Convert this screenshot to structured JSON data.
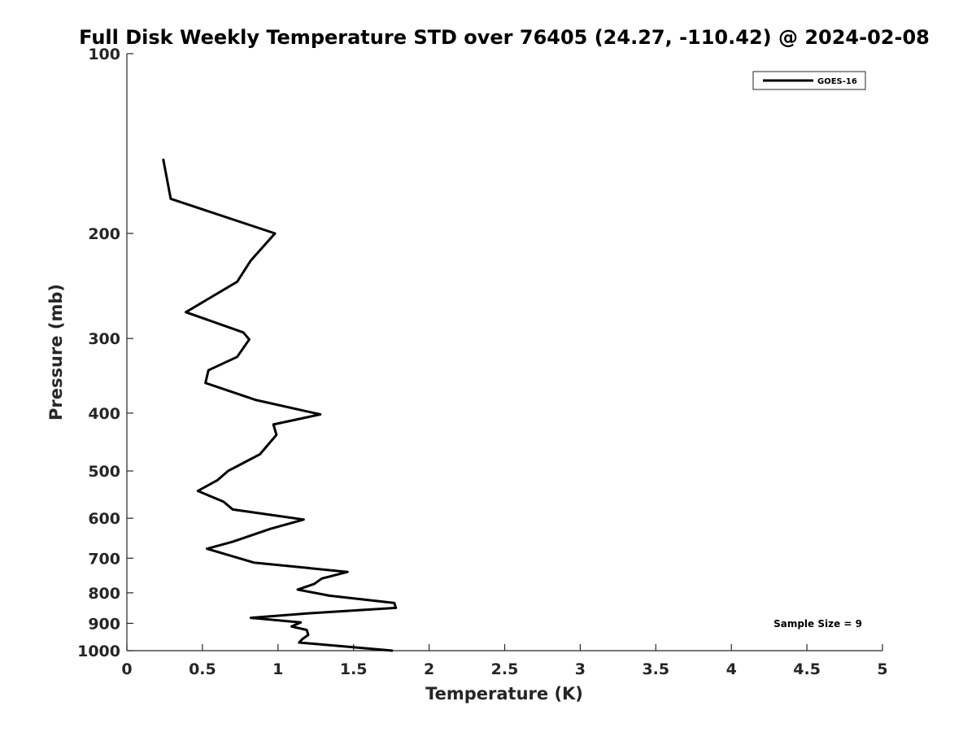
{
  "chart_data": {
    "type": "line",
    "title": "Full Disk Weekly Temperature STD over 76405 (24.27, -110.42) @ 2024-02-08",
    "xlabel": "Temperature (K)",
    "ylabel": "Pressure (mb)",
    "xlim": [
      0,
      5
    ],
    "ylim": [
      100,
      1000
    ],
    "y_scale": "log",
    "y_reversed": true,
    "xticks": [
      0,
      0.5,
      1,
      1.5,
      2,
      2.5,
      3,
      3.5,
      4,
      4.5,
      5
    ],
    "xtick_labels": [
      "0",
      "0.5",
      "1",
      "1.5",
      "2",
      "2.5",
      "3",
      "3.5",
      "4",
      "4.5",
      "5"
    ],
    "yticks": [
      100,
      200,
      300,
      400,
      500,
      600,
      700,
      800,
      900,
      1000
    ],
    "ytick_labels": [
      "100",
      "200",
      "300",
      "400",
      "500",
      "600",
      "700",
      "800",
      "900",
      "1000"
    ],
    "grid": false,
    "legend": {
      "position": "top-right"
    },
    "annotation": "Sample Size = 9",
    "series": [
      {
        "name": "GOES-16",
        "color": "#000000",
        "points": [
          [
            0.24,
            150
          ],
          [
            0.29,
            175
          ],
          [
            0.98,
            200
          ],
          [
            0.82,
            222
          ],
          [
            0.73,
            241
          ],
          [
            0.39,
            271
          ],
          [
            0.77,
            293
          ],
          [
            0.81,
            301
          ],
          [
            0.73,
            322
          ],
          [
            0.54,
            339
          ],
          [
            0.52,
            356
          ],
          [
            0.85,
            380
          ],
          [
            1.28,
            402
          ],
          [
            0.97,
            418
          ],
          [
            0.99,
            435
          ],
          [
            0.88,
            469
          ],
          [
            0.67,
            500
          ],
          [
            0.6,
            518
          ],
          [
            0.47,
            540
          ],
          [
            0.64,
            563
          ],
          [
            0.7,
            580
          ],
          [
            1.17,
            603
          ],
          [
            0.95,
            625
          ],
          [
            0.7,
            657
          ],
          [
            0.53,
            675
          ],
          [
            0.84,
            712
          ],
          [
            1.46,
            738
          ],
          [
            1.29,
            757
          ],
          [
            1.24,
            773
          ],
          [
            1.13,
            790
          ],
          [
            1.34,
            809
          ],
          [
            1.77,
            832
          ],
          [
            1.78,
            848
          ],
          [
            1.2,
            866
          ],
          [
            0.82,
            881
          ],
          [
            1.15,
            897
          ],
          [
            1.09,
            911
          ],
          [
            1.19,
            923
          ],
          [
            1.2,
            941
          ],
          [
            1.16,
            957
          ],
          [
            1.14,
            969
          ],
          [
            1.76,
            1000
          ]
        ]
      }
    ]
  }
}
